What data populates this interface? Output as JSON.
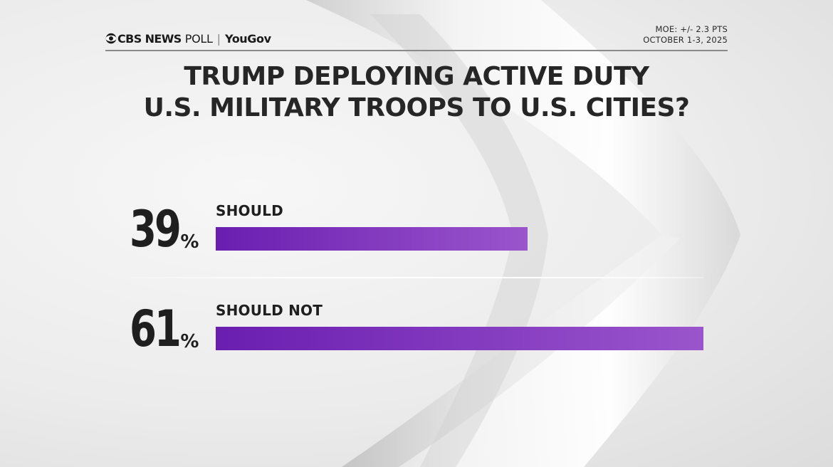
{
  "header": {
    "brand_cbs": "CBS NEWS",
    "brand_poll": "POLL",
    "brand_separator": "|",
    "brand_partner": "YouGov",
    "moe": "MOE: +/- 2.3 PTS",
    "dates": "OCTOBER 1-3, 2025"
  },
  "chart_data": {
    "type": "bar",
    "orientation": "horizontal",
    "title": "TRUMP DEPLOYING ACTIVE DUTY U.S. MILITARY TROOPS TO U.S. CITIES?",
    "title_lines": [
      "TRUMP DEPLOYING ACTIVE DUTY",
      "U.S. MILITARY TROOPS TO U.S. CITIES?"
    ],
    "categories": [
      "SHOULD",
      "SHOULD NOT"
    ],
    "values": [
      39,
      61
    ],
    "value_labels": [
      "39",
      "61"
    ],
    "unit": "%",
    "xlim": [
      0,
      61
    ],
    "colors": {
      "bar_start": "#6a1eb0",
      "bar_end": "#9a55cc"
    },
    "grid": false,
    "legend": "none"
  }
}
